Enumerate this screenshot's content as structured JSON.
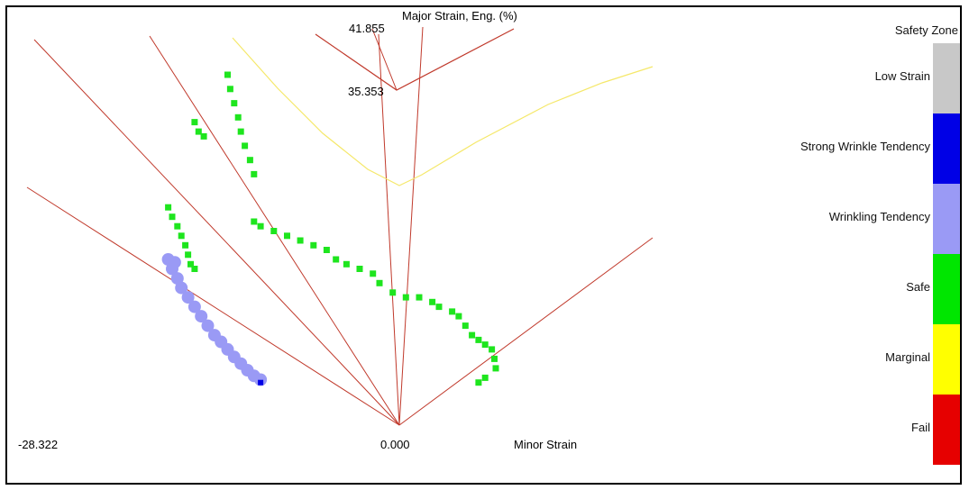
{
  "window_title": "",
  "chart_data": {
    "type": "scatter",
    "title": "",
    "ylabel": "Major Strain, Eng. (%)",
    "xlabel": "Minor Strain",
    "x_min_label": "-28.322",
    "x_origin_label": "0.000",
    "y_max_label": "41.855",
    "y_mid_label": "35.353",
    "xlim": [
      -28.322,
      18
    ],
    "ylim": [
      0,
      41.855
    ],
    "grid": false,
    "legend_position": "right",
    "legend_title": "Safety Zone",
    "legend": [
      {
        "label": "Low Strain",
        "color": "#c8c8c8"
      },
      {
        "label": "Strong Wrinkle Tendency",
        "color": "#0000e6"
      },
      {
        "label": "Wrinkling Tendency",
        "color": "#9a9af5"
      },
      {
        "label": "Safe",
        "color": "#00e600"
      },
      {
        "label": "Marginal",
        "color": "#ffff00"
      },
      {
        "label": "Fail",
        "color": "#e60000"
      }
    ],
    "series": [
      {
        "zone": "Safe",
        "color": "#1ee51e",
        "points": [
          [
            -13.0,
            37.0
          ],
          [
            -12.8,
            35.5
          ],
          [
            -12.5,
            34.0
          ],
          [
            -12.2,
            32.5
          ],
          [
            -12.0,
            31.0
          ],
          [
            -11.7,
            29.5
          ],
          [
            -11.3,
            28.0
          ],
          [
            -11.0,
            26.5
          ],
          [
            -15.5,
            32.0
          ],
          [
            -15.2,
            31.0
          ],
          [
            -14.8,
            30.5
          ],
          [
            -17.5,
            23.0
          ],
          [
            -17.2,
            22.0
          ],
          [
            -16.8,
            21.0
          ],
          [
            -16.5,
            20.0
          ],
          [
            -16.2,
            19.0
          ],
          [
            -16.0,
            18.0
          ],
          [
            -15.8,
            17.0
          ],
          [
            -15.5,
            16.5
          ],
          [
            -11.0,
            21.5
          ],
          [
            -10.5,
            21.0
          ],
          [
            -9.5,
            20.5
          ],
          [
            -8.5,
            20.0
          ],
          [
            -7.5,
            19.5
          ],
          [
            -6.5,
            19.0
          ],
          [
            -5.5,
            18.5
          ],
          [
            -4.8,
            17.5
          ],
          [
            -4.0,
            17.0
          ],
          [
            -3.0,
            16.5
          ],
          [
            -2.0,
            16.0
          ],
          [
            -1.5,
            15.0
          ],
          [
            -0.5,
            14.0
          ],
          [
            0.5,
            13.5
          ],
          [
            1.5,
            13.5
          ],
          [
            2.5,
            13.0
          ],
          [
            3.0,
            12.5
          ],
          [
            4.0,
            12.0
          ],
          [
            4.5,
            11.5
          ],
          [
            5.0,
            10.5
          ],
          [
            5.5,
            9.5
          ],
          [
            6.0,
            9.0
          ],
          [
            6.5,
            8.5
          ],
          [
            7.0,
            8.0
          ],
          [
            7.2,
            7.0
          ],
          [
            7.3,
            6.0
          ],
          [
            6.5,
            5.0
          ],
          [
            6.0,
            4.5
          ]
        ]
      },
      {
        "zone": "Wrinkling Tendency",
        "color": "#9a9af5",
        "points": [
          [
            -17.5,
            17.5
          ],
          [
            -17.0,
            17.2
          ],
          [
            -17.2,
            16.5
          ],
          [
            -16.8,
            15.5
          ],
          [
            -16.5,
            14.5
          ],
          [
            -16.0,
            13.5
          ],
          [
            -15.5,
            12.5
          ],
          [
            -15.0,
            11.5
          ],
          [
            -14.5,
            10.5
          ],
          [
            -14.0,
            9.5
          ],
          [
            -13.5,
            8.8
          ],
          [
            -13.0,
            8.0
          ],
          [
            -12.5,
            7.2
          ],
          [
            -12.0,
            6.5
          ],
          [
            -11.5,
            5.8
          ],
          [
            -11.0,
            5.2
          ],
          [
            -10.5,
            4.8
          ]
        ]
      },
      {
        "zone": "Strong Wrinkle Tendency",
        "color": "#0000e6",
        "points": [
          [
            -10.5,
            4.5
          ]
        ]
      }
    ]
  }
}
